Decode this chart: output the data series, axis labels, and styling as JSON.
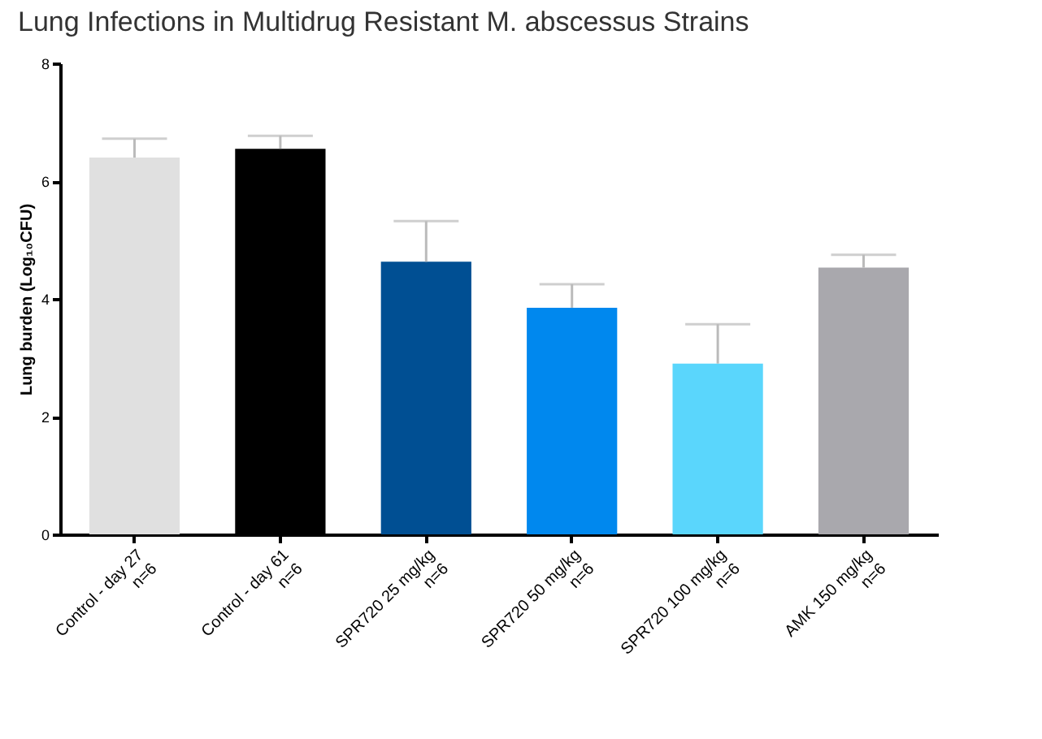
{
  "chart_data": {
    "type": "bar",
    "title": "Lung Infections in Multidrug Resistant M. abscessus Strains",
    "ylabel": "Lung burden (Log₁₀CFU)",
    "categories": [
      "Control - day 27\nn=6",
      "Control - day 61\nn=6",
      "SPR720 25 mg/kg\nn=6",
      "SPR720 50 mg/kg\nn=6",
      "SPR720 100 mg/kg\nn=6",
      "AMK 150 mg/kg\nn=6"
    ],
    "values": [
      6.4,
      6.55,
      4.63,
      3.85,
      2.9,
      4.53
    ],
    "colors": [
      "#e0e0e0",
      "#000000",
      "#004f93",
      "#0088ee",
      "#5ad6fc",
      "#a9a8ad"
    ],
    "errors": [
      [
        6.4,
        6.72
      ],
      [
        6.55,
        6.77
      ],
      [
        4.63,
        5.32
      ],
      [
        3.85,
        4.25
      ],
      [
        2.9,
        3.57
      ],
      [
        4.53,
        4.75
      ]
    ],
    "ylim": [
      0,
      8
    ],
    "yticks": [
      0,
      2,
      4,
      6,
      8
    ],
    "grid": false
  }
}
